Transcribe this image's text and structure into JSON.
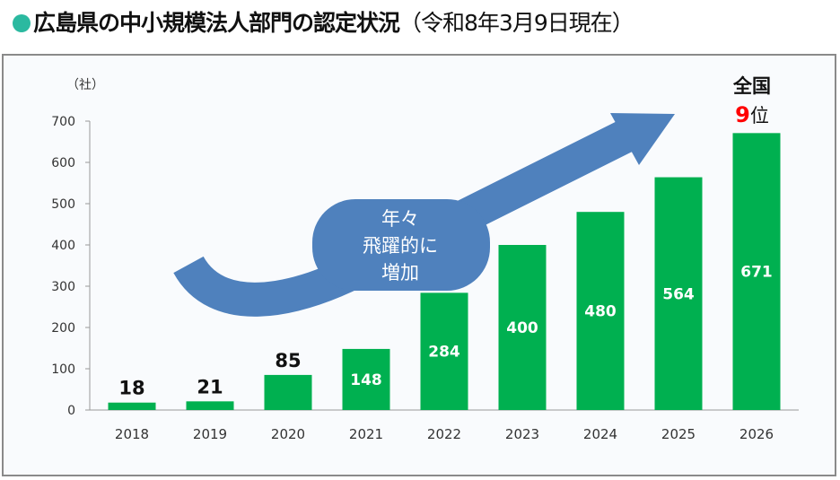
{
  "title": {
    "main": "広島県の中小規模法人部門の認定状況",
    "sub": "（令和8年3月9日現在）"
  },
  "chart_data": {
    "type": "bar",
    "title": "広島県の中小規模法人部門の認定状況（令和8年3月9日現在）",
    "ylabel": "（社）",
    "xlabel": "",
    "categories": [
      "2018",
      "2019",
      "2020",
      "2021",
      "2022",
      "2023",
      "2024",
      "2025",
      "2026"
    ],
    "values": [
      18,
      21,
      85,
      148,
      284,
      400,
      480,
      564,
      671
    ],
    "ylim": [
      0,
      700
    ],
    "yticks": [
      0,
      100,
      200,
      300,
      400,
      500,
      600,
      700
    ],
    "bar_color": "#00b050",
    "grid": false,
    "annotations": {
      "arrow_text": [
        "年々",
        "飛躍的に",
        "増加"
      ],
      "rank_label": "全国",
      "rank_number": "9",
      "rank_suffix": "位",
      "rank_color": "#ff0000",
      "arrow_color": "#4f81bd"
    }
  }
}
